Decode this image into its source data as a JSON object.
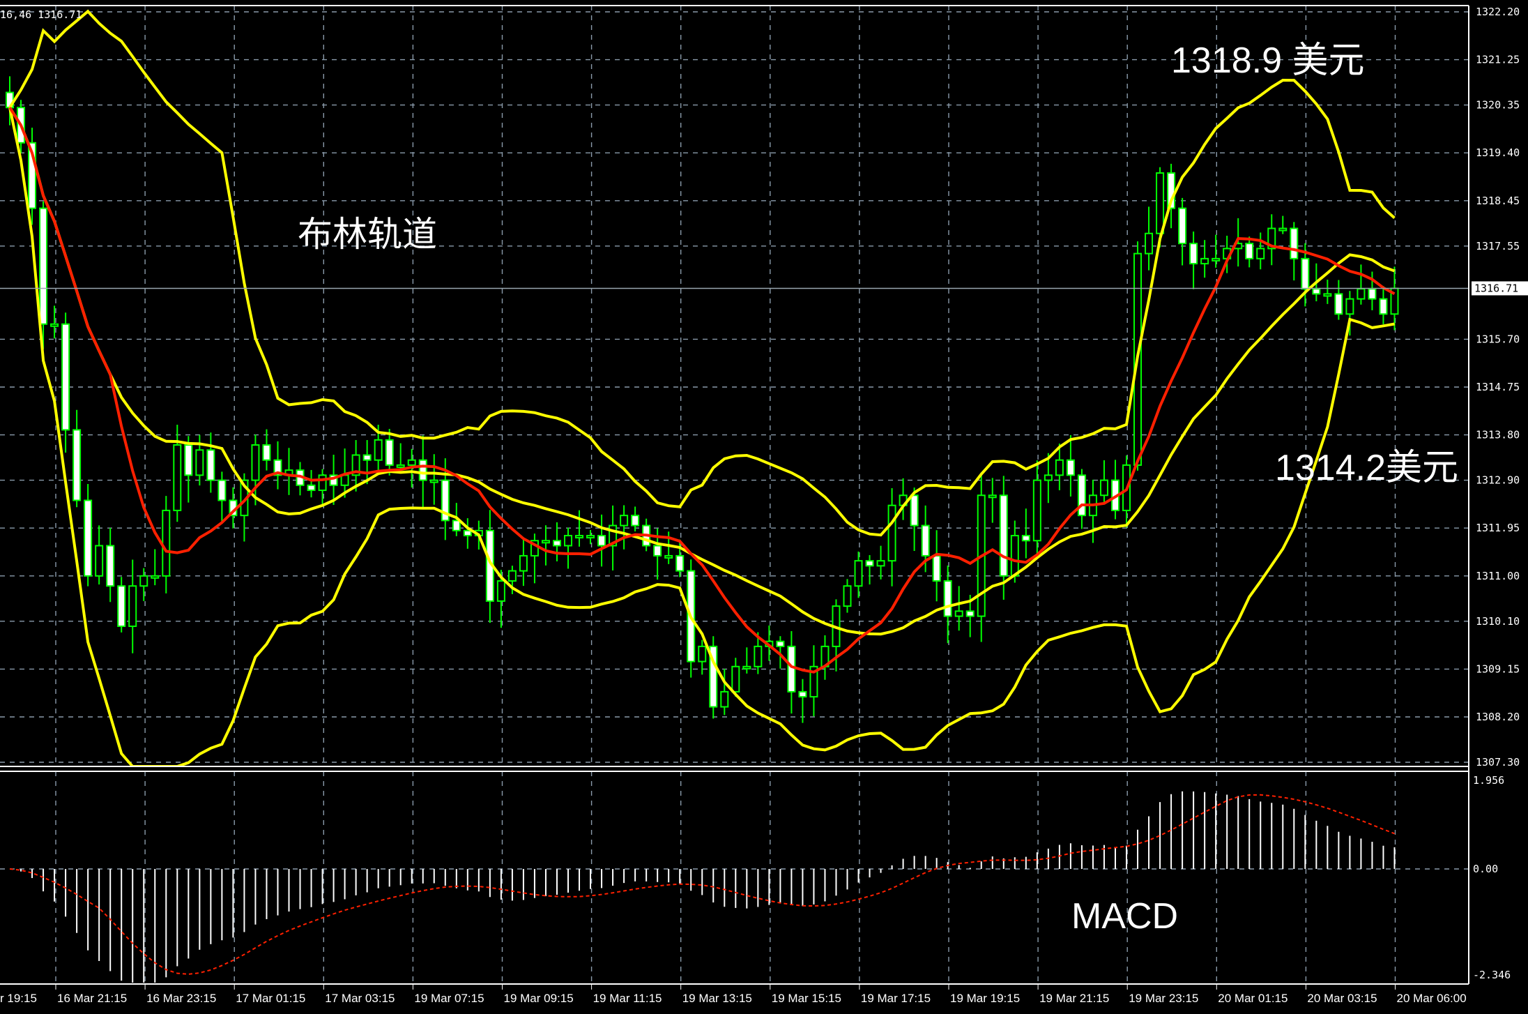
{
  "header": {
    "readout": "16,46 1316.71"
  },
  "annotations": {
    "upper_price": "1318.9 美元",
    "bollinger": "布林轨道",
    "lower_price": "1314.2美元",
    "macd": "MACD"
  },
  "colors": {
    "background": "#000000",
    "grid": "#8a9bab",
    "candle_outline": "#00ff00",
    "bear_body": "#ffffff",
    "bull_body": "#000000",
    "bollinger": "#ffff00",
    "moving_average": "#ff2000",
    "macd_histogram": "#ffffff",
    "macd_signal": "#ff2000"
  },
  "chart_data": [
    {
      "type": "candlestick",
      "symbol_timeframe": "M15",
      "price_axis": {
        "ticks": [
          "1322.20",
          "1321.25",
          "1320.35",
          "1319.40",
          "1318.45",
          "1317.55",
          "1316.71",
          "1315.70",
          "1314.75",
          "1313.80",
          "1312.90",
          "1311.95",
          "1311.00",
          "1310.10",
          "1309.15",
          "1308.20",
          "1307.30"
        ],
        "range": [
          1307.3,
          1322.2
        ]
      },
      "current_price": "1316.71",
      "time_axis": {
        "ticks": [
          "r 19:15",
          "16 Mar 21:15",
          "16 Mar 23:15",
          "17 Mar 01:15",
          "17 Mar 03:15",
          "19 Mar 07:15",
          "19 Mar 09:15",
          "19 Mar 11:15",
          "19 Mar 13:15",
          "19 Mar 15:15",
          "19 Mar 17:15",
          "19 Mar 19:15",
          "19 Mar 21:15",
          "19 Mar 23:15",
          "20 Mar 01:15",
          "20 Mar 03:15",
          "20 Mar 06:00"
        ]
      },
      "closes": [
        1320.3,
        1319.6,
        1318.3,
        1316.0,
        1316.0,
        1313.9,
        1312.5,
        1311.0,
        1311.6,
        1310.8,
        1310.0,
        1310.8,
        1311.0,
        1311.0,
        1312.3,
        1313.6,
        1313.0,
        1313.5,
        1312.9,
        1312.5,
        1312.2,
        1312.9,
        1313.6,
        1313.3,
        1313.0,
        1313.1,
        1312.8,
        1312.7,
        1313.0,
        1312.8,
        1313.0,
        1313.4,
        1313.3,
        1313.7,
        1313.2,
        1313.2,
        1313.3,
        1312.9,
        1312.9,
        1312.1,
        1311.9,
        1311.8,
        1311.9,
        1310.5,
        1310.9,
        1311.1,
        1311.4,
        1311.7,
        1311.7,
        1311.6,
        1311.8,
        1311.8,
        1311.8,
        1311.6,
        1312.0,
        1312.2,
        1312.0,
        1311.6,
        1311.4,
        1311.4,
        1311.1,
        1309.3,
        1309.6,
        1308.4,
        1308.7,
        1309.2,
        1309.2,
        1309.6,
        1309.7,
        1309.6,
        1308.7,
        1308.6,
        1309.2,
        1309.6,
        1310.4,
        1310.8,
        1311.3,
        1311.2,
        1311.3,
        1312.4,
        1312.6,
        1312.0,
        1311.4,
        1310.9,
        1310.2,
        1310.3,
        1310.2,
        1312.6,
        1312.6,
        1311.0,
        1311.8,
        1311.7,
        1312.9,
        1313.0,
        1313.3,
        1313.0,
        1312.2,
        1312.6,
        1312.9,
        1312.3,
        1313.2,
        1317.4,
        1317.8,
        1319.0,
        1318.3,
        1317.6,
        1317.2,
        1317.3,
        1317.3,
        1317.5,
        1317.6,
        1317.3,
        1317.5,
        1317.9,
        1317.9,
        1317.3,
        1316.7,
        1316.6,
        1316.6,
        1316.2,
        1316.5,
        1316.7,
        1316.5,
        1316.2,
        1316.71
      ],
      "indicators": [
        "Bollinger Bands",
        "Moving Average"
      ]
    },
    {
      "type": "macd",
      "label": "MACD",
      "axis_ticks": [
        "1.956",
        "0.00",
        "-2.346"
      ],
      "range": [
        -2.346,
        1.956
      ]
    }
  ]
}
